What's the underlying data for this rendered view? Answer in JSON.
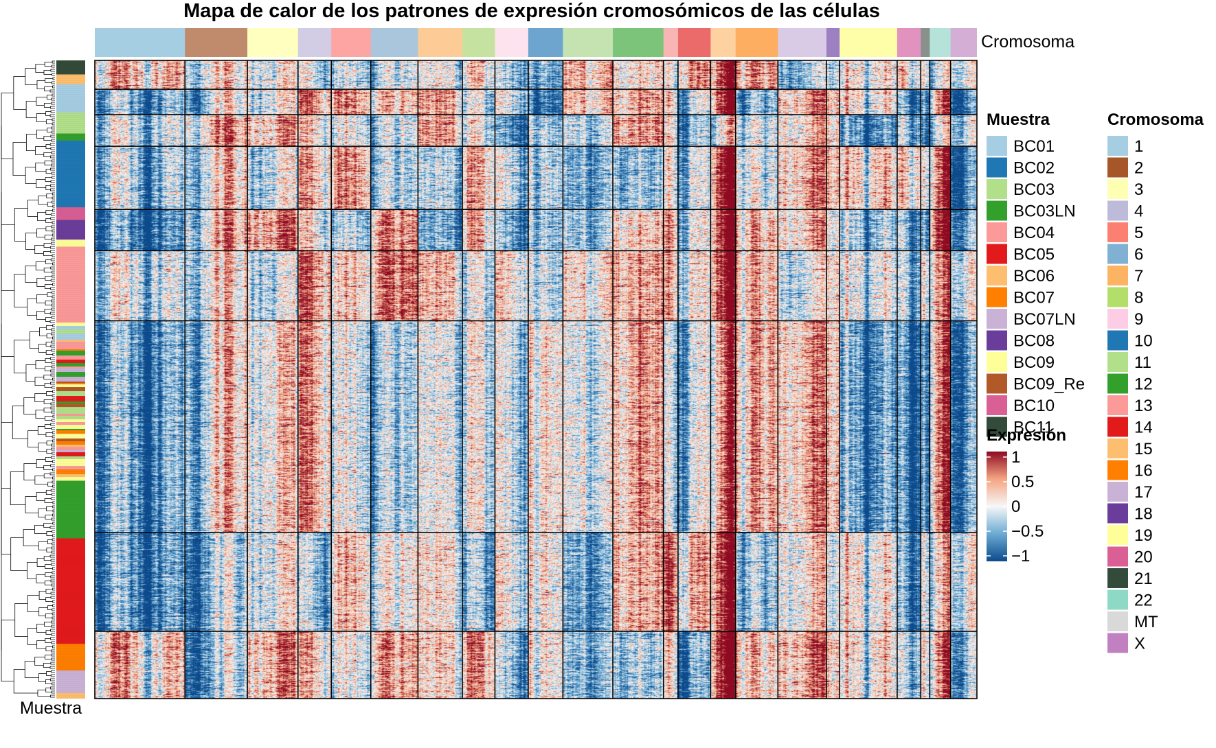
{
  "title": "Mapa de calor de los patrones de expresión cromosómicos de las células",
  "top_annotation_label": "Cromosoma",
  "left_annotation_label": "Muestra",
  "chart_data": {
    "type": "heatmap",
    "title": "Mapa de calor de los patrones de expresión cromosómicos de las células",
    "column_annotation": {
      "name": "Cromosoma",
      "segments": [
        {
          "label": "1",
          "color": "#A6CEE3",
          "weight": 130
        },
        {
          "label": "2",
          "color": "#C08B6C",
          "weight": 90
        },
        {
          "label": "3",
          "color": "#FFFFBF",
          "weight": 73
        },
        {
          "label": "4",
          "color": "#D2CCE4",
          "weight": 48
        },
        {
          "label": "5",
          "color": "#FCA5A2",
          "weight": 57
        },
        {
          "label": "6",
          "color": "#A9C6DD",
          "weight": 68
        },
        {
          "label": "7",
          "color": "#FDCB95",
          "weight": 64
        },
        {
          "label": "8",
          "color": "#C6E2A0",
          "weight": 47
        },
        {
          "label": "9",
          "color": "#FDE3EE",
          "weight": 48
        },
        {
          "label": "10",
          "color": "#6EA5CF",
          "weight": 50
        },
        {
          "label": "11",
          "color": "#C4E3B0",
          "weight": 72
        },
        {
          "label": "12",
          "color": "#7BC47A",
          "weight": 73
        },
        {
          "label": "13",
          "color": "#F9B4B4",
          "weight": 21
        },
        {
          "label": "14",
          "color": "#EB6B6B",
          "weight": 47
        },
        {
          "label": "15",
          "color": "#FDD1A0",
          "weight": 36
        },
        {
          "label": "16",
          "color": "#FDAE60",
          "weight": 61
        },
        {
          "label": "17",
          "color": "#D9CBE5",
          "weight": 70
        },
        {
          "label": "18",
          "color": "#9C80C2",
          "weight": 19
        },
        {
          "label": "19",
          "color": "#FEFDA8",
          "weight": 83
        },
        {
          "label": "20",
          "color": "#E192BE",
          "weight": 34
        },
        {
          "label": "21",
          "color": "#88918C",
          "weight": 13
        },
        {
          "label": "22",
          "color": "#B5E3D9",
          "weight": 30
        },
        {
          "label": "X",
          "color": "#D5AED5",
          "weight": 38
        }
      ]
    },
    "row_clusters": [
      {
        "weight": 42
      },
      {
        "weight": 37
      },
      {
        "weight": 46
      },
      {
        "weight": 92
      },
      {
        "weight": 60
      },
      {
        "weight": 102
      },
      {
        "weight": 308
      },
      {
        "weight": 144
      },
      {
        "weight": 98
      }
    ],
    "color_scale": {
      "name": "Expresión",
      "stops": [
        {
          "value": -1,
          "color": "#0C4A8C"
        },
        {
          "value": -0.5,
          "color": "#6BAAD3"
        },
        {
          "value": 0,
          "color": "#F7F7F7"
        },
        {
          "value": 0.5,
          "color": "#F4A582"
        },
        {
          "value": 1,
          "color": "#8E0A22"
        }
      ],
      "ticks": [
        "1",
        "0.5",
        "0",
        "−0.5",
        "−1"
      ]
    },
    "legends": [
      {
        "title": "Muestra",
        "entries": [
          {
            "label": "BC01",
            "color": "#A6CEE3"
          },
          {
            "label": "BC02",
            "color": "#1F78B4"
          },
          {
            "label": "BC03",
            "color": "#B2DF8A"
          },
          {
            "label": "BC03LN",
            "color": "#33A02C"
          },
          {
            "label": "BC04",
            "color": "#FB9A99"
          },
          {
            "label": "BC05",
            "color": "#E31A1C"
          },
          {
            "label": "BC06",
            "color": "#FDBF6F"
          },
          {
            "label": "BC07",
            "color": "#FF7F00"
          },
          {
            "label": "BC07LN",
            "color": "#CAB2D6"
          },
          {
            "label": "BC08",
            "color": "#6A3D9A"
          },
          {
            "label": "BC09",
            "color": "#FFFF99"
          },
          {
            "label": "BC09_Re",
            "color": "#B15928"
          },
          {
            "label": "BC10",
            "color": "#D95F95"
          },
          {
            "label": "BC11",
            "color": "#334B3A"
          }
        ]
      },
      {
        "title": "Cromosoma",
        "entries": [
          {
            "label": "1",
            "color": "#A6CEE3"
          },
          {
            "label": "2",
            "color": "#A65628"
          },
          {
            "label": "3",
            "color": "#FFFFB3"
          },
          {
            "label": "4",
            "color": "#BEBADA"
          },
          {
            "label": "5",
            "color": "#FB8072"
          },
          {
            "label": "6",
            "color": "#80B1D3"
          },
          {
            "label": "7",
            "color": "#FDB462"
          },
          {
            "label": "8",
            "color": "#B3DE69"
          },
          {
            "label": "9",
            "color": "#FCCDE5"
          },
          {
            "label": "10",
            "color": "#1F78B4"
          },
          {
            "label": "11",
            "color": "#B2DF8A"
          },
          {
            "label": "12",
            "color": "#33A02C"
          },
          {
            "label": "13",
            "color": "#FB9A99"
          },
          {
            "label": "14",
            "color": "#E31A1C"
          },
          {
            "label": "15",
            "color": "#FDBF6F"
          },
          {
            "label": "16",
            "color": "#FF7F00"
          },
          {
            "label": "17",
            "color": "#CAB2D6"
          },
          {
            "label": "18",
            "color": "#6A3D9A"
          },
          {
            "label": "19",
            "color": "#FFFF99"
          },
          {
            "label": "20",
            "color": "#D95F95"
          },
          {
            "label": "21",
            "color": "#334B3A"
          },
          {
            "label": "22",
            "color": "#8ED8C6"
          },
          {
            "label": "MT",
            "color": "#D9D9D9"
          },
          {
            "label": "X",
            "color": "#C181C1"
          }
        ]
      }
    ],
    "row_sample_bands": [
      {
        "sample": "BC11",
        "weight": 20
      },
      {
        "sample": "BC06",
        "weight": 14
      },
      {
        "sample": "BC01",
        "weight": 40
      },
      {
        "sample": "BC03",
        "weight": 30
      },
      {
        "sample": "BC03LN",
        "weight": 10
      },
      {
        "sample": "BC02",
        "weight": 95
      },
      {
        "sample": "BC10",
        "weight": 18
      },
      {
        "sample": "BC08",
        "weight": 28
      },
      {
        "sample": "BC09",
        "weight": 10
      },
      {
        "sample": "BC04",
        "weight": 108
      },
      {
        "sample": "mixed",
        "weight": 225
      },
      {
        "sample": "BC03LN",
        "weight": 82
      },
      {
        "sample": "BC05",
        "weight": 150
      },
      {
        "sample": "BC07",
        "weight": 38
      },
      {
        "sample": "BC07LN",
        "weight": 32
      },
      {
        "sample": "BC06",
        "weight": 8
      }
    ]
  }
}
